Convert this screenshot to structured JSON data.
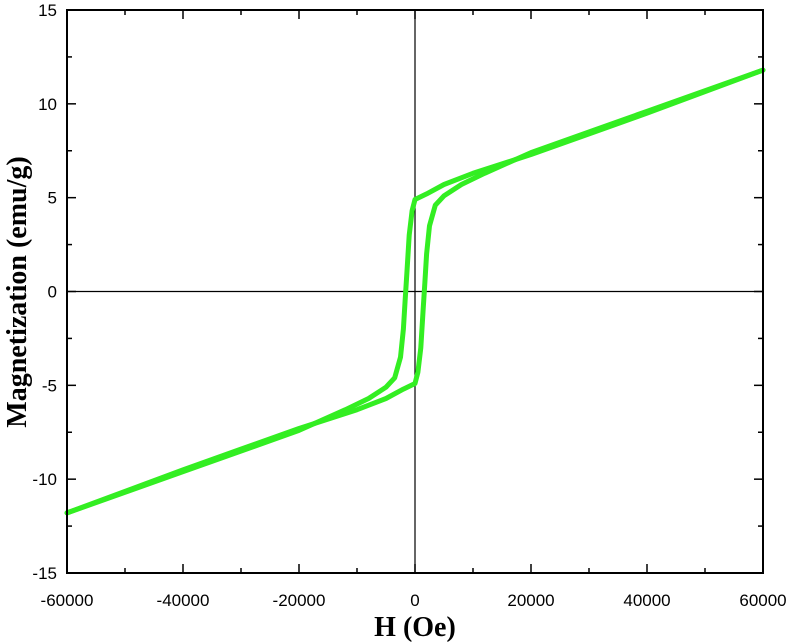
{
  "chart_data": {
    "type": "line",
    "title": "",
    "xlabel": "H (Oe)",
    "ylabel": "Magnetization (emu/g)",
    "xlim": [
      -60000,
      60000
    ],
    "ylim": [
      -15,
      15
    ],
    "x_ticks": [
      -60000,
      -40000,
      -20000,
      0,
      20000,
      40000,
      60000
    ],
    "x_tick_labels": [
      "-60000",
      "-40000",
      "-20000",
      "0",
      "20000",
      "40000",
      "60000"
    ],
    "y_ticks": [
      15,
      10,
      5,
      0,
      -5,
      -10,
      -15
    ],
    "y_tick_labels": [
      "15",
      "10",
      "5",
      "0",
      "-5",
      "-10",
      "-15"
    ],
    "grid": false,
    "legend": "none",
    "line_color": "#33ee22",
    "series": [
      {
        "points": [
          [
            -60000,
            -11.8
          ],
          [
            -40000,
            -9.6
          ],
          [
            -20000,
            -7.4
          ],
          [
            -12000,
            -6.3
          ],
          [
            -8000,
            -5.7
          ],
          [
            -5000,
            -5.1
          ],
          [
            -3500,
            -4.6
          ],
          [
            -2500,
            -3.5
          ],
          [
            -2000,
            -2.0
          ],
          [
            -1700,
            -0.5
          ],
          [
            -1400,
            1.0
          ],
          [
            -1000,
            3.0
          ],
          [
            -500,
            4.3
          ],
          [
            0,
            4.9
          ],
          [
            2000,
            5.2
          ],
          [
            5000,
            5.7
          ],
          [
            10000,
            6.3
          ],
          [
            20000,
            7.3
          ],
          [
            30000,
            8.4
          ],
          [
            40000,
            9.5
          ],
          [
            60000,
            11.8
          ]
        ]
      },
      {
        "points": [
          [
            60000,
            11.8
          ],
          [
            40000,
            9.6
          ],
          [
            20000,
            7.4
          ],
          [
            12000,
            6.3
          ],
          [
            8000,
            5.7
          ],
          [
            5000,
            5.1
          ],
          [
            3500,
            4.6
          ],
          [
            2500,
            3.5
          ],
          [
            2000,
            2.0
          ],
          [
            1700,
            0.5
          ],
          [
            1400,
            -1.0
          ],
          [
            1000,
            -3.0
          ],
          [
            500,
            -4.3
          ],
          [
            0,
            -4.9
          ],
          [
            -2000,
            -5.2
          ],
          [
            -5000,
            -5.7
          ],
          [
            -10000,
            -6.3
          ],
          [
            -20000,
            -7.3
          ],
          [
            -30000,
            -8.4
          ],
          [
            -40000,
            -9.5
          ],
          [
            -60000,
            -11.8
          ]
        ]
      }
    ]
  }
}
